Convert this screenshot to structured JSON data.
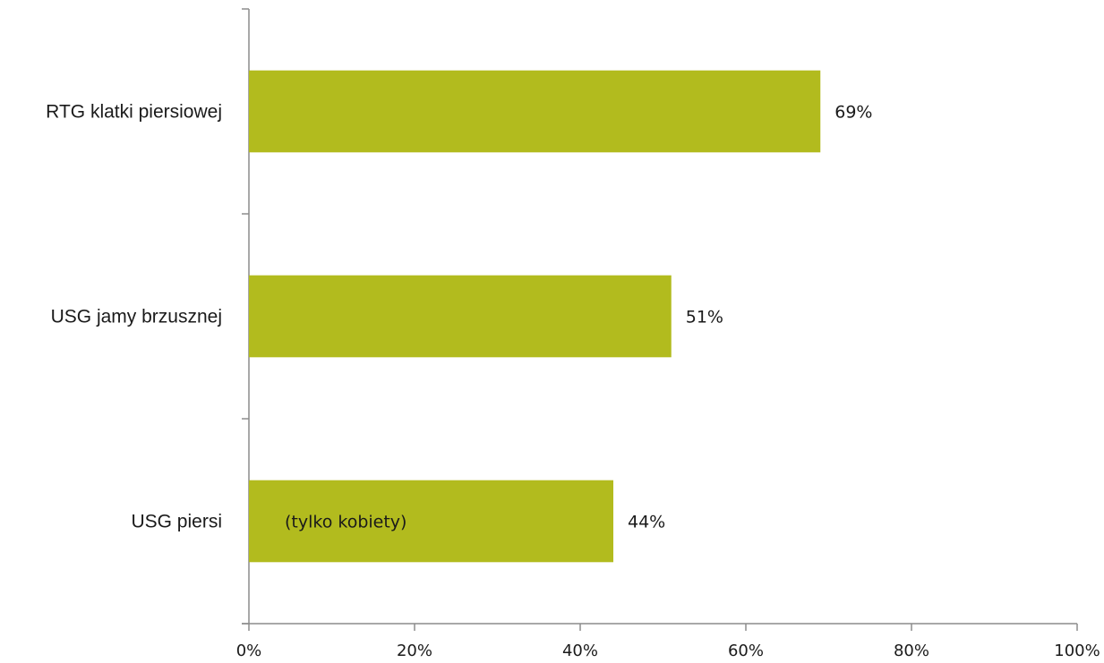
{
  "chart_data": {
    "type": "bar",
    "orientation": "horizontal",
    "title": "",
    "xlabel": "",
    "ylabel": "",
    "categories": [
      "RTG klatki piersiowej",
      "USG jamy brzusznej",
      "USG piersi"
    ],
    "values": [
      69,
      51,
      44
    ],
    "value_labels": [
      "69%",
      "51%",
      "44%"
    ],
    "bar_notes": [
      "",
      "",
      "(tylko kobiety)"
    ],
    "xlim": [
      0,
      100
    ],
    "x_ticks": [
      0,
      20,
      40,
      60,
      80,
      100
    ],
    "x_tick_labels": [
      "0%",
      "20%",
      "40%",
      "60%",
      "80%",
      "100%"
    ],
    "grid": false,
    "legend": "none",
    "bar_color": "#b2bb1e"
  }
}
